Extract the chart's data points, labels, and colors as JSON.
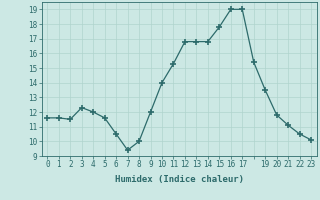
{
  "x": [
    0,
    1,
    2,
    3,
    4,
    5,
    6,
    7,
    8,
    9,
    10,
    11,
    12,
    13,
    14,
    15,
    16,
    17,
    18,
    19,
    20,
    21,
    22,
    23
  ],
  "y": [
    11.6,
    11.6,
    11.5,
    12.3,
    12.0,
    11.6,
    10.5,
    9.4,
    10.0,
    12.0,
    14.0,
    15.3,
    16.8,
    16.8,
    16.8,
    17.8,
    19.0,
    19.0,
    15.4,
    13.5,
    11.8,
    11.1,
    10.5,
    10.1
  ],
  "line_color": "#2d6b6b",
  "marker": "+",
  "marker_size": 4,
  "bg_color": "#cce8e4",
  "grid_color": "#b0d4ce",
  "xlabel": "Humidex (Indice chaleur)",
  "xlim": [
    -0.5,
    23.5
  ],
  "ylim": [
    9,
    19.5
  ],
  "yticks": [
    9,
    10,
    11,
    12,
    13,
    14,
    15,
    16,
    17,
    18,
    19
  ],
  "xtick_labels": [
    "0",
    "1",
    "2",
    "3",
    "4",
    "5",
    "6",
    "7",
    "8",
    "9",
    "10",
    "11",
    "12",
    "13",
    "14",
    "15",
    "16",
    "17",
    "",
    "19",
    "20",
    "21",
    "22",
    "23"
  ],
  "xlabel_fontsize": 6.5,
  "tick_fontsize": 5.5,
  "tick_color": "#2d6b6b",
  "label_color": "#2d6b6b",
  "linewidth": 0.9,
  "marker_linewidth": 1.2
}
